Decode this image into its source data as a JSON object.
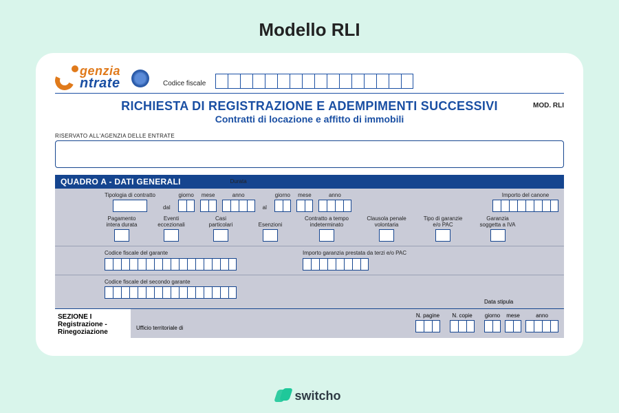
{
  "page": {
    "title": "Modello RLI"
  },
  "colors": {
    "page_bg": "#d9f5eb",
    "card_bg": "#ffffff",
    "navy": "#15458f",
    "blue": "#1a4fa3",
    "panel_bg": "#c9cbd7",
    "orange": "#e07a1b",
    "switcho": "#1fc89a"
  },
  "header": {
    "agency_line1": "genzia",
    "agency_line2": "ntrate",
    "cf_label": "Codice fiscale",
    "cf_cells": 16
  },
  "form": {
    "title1": "RICHIESTA DI REGISTRAZIONE E ADEMPIMENTI SUCCESSIVI",
    "title2": "Contratti di locazione e affitto di immobili",
    "mod": "MOD. RLI",
    "riservato_label": "RISERVATO ALL'AGENZIA DELLE ENTRATE",
    "quadroA": "QUADRO A - DATI GENERALI",
    "row1": {
      "tipologia": "Tipologia di contratto",
      "durata": "Durata",
      "dal": "dal",
      "al": "al",
      "giorno": "giorno",
      "mese": "mese",
      "anno": "anno",
      "importo": "Importo del canone"
    },
    "row2": {
      "pag": "Pagamento intera durata",
      "eventi": "Eventi eccezionali",
      "casi": "Casi particolari",
      "esenzioni": "Esenzioni",
      "tempo": "Contratto a tempo indeterminato",
      "clausola": "Clausola penale volontaria",
      "garanzie": "Tipo di garanzie e/o PAC",
      "iva": "Garanzia soggetta a IVA"
    },
    "row3": {
      "cf_garante": "Codice fiscale del garante",
      "importo_garanzia": "Importo garanzia prestata da terzi e/o PAC"
    },
    "row4": {
      "cf_secondo": "Codice fiscale del secondo garante"
    },
    "sezione": {
      "head": "SEZIONE I",
      "sub1": "Registrazione -",
      "sub2_partial": "Rinegoziazione",
      "ufficio_partial": "Ufficio territoriale di",
      "npagine": "N. pagine",
      "ncopie": "N. copie",
      "data_stipula": "Data stipula",
      "giorno": "giorno",
      "mese": "mese",
      "anno": "anno"
    }
  },
  "footer": {
    "brand": "switcho"
  }
}
